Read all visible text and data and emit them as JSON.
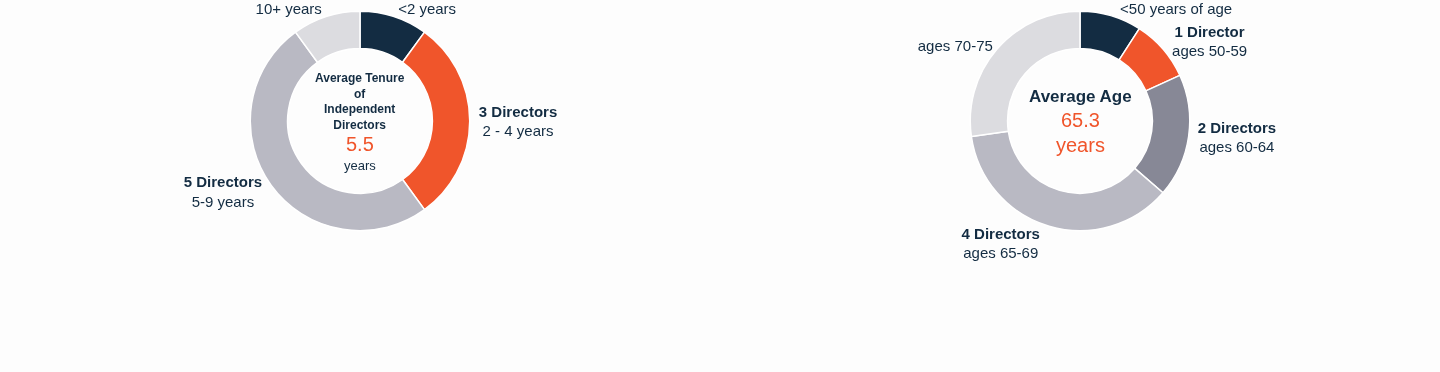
{
  "chart_data": [
    {
      "type": "donut",
      "title": "Average Tenure\nof\nIndependent\nDirectors",
      "annotations": [
        "5.5",
        "years"
      ],
      "categories": [
        "<2 years",
        "3 Directors\n2 - 4 years",
        "5 Directors\n5-9 years",
        "10+ years"
      ],
      "values": [
        1,
        3,
        5,
        1
      ],
      "colors": [
        "#132c42",
        "#f0552b",
        "#b9b9c3",
        "#dcdce0"
      ],
      "legend": false
    },
    {
      "type": "donut",
      "title": "Average Age",
      "annotations": [
        "65.3",
        "years"
      ],
      "categories": [
        "1 Director\n<50 years of age",
        "1 Director\nages 50-59",
        "2 Directors\nages 60-64",
        "4 Directors\nages 65-69",
        "ages 70-75"
      ],
      "values": [
        1,
        1,
        2,
        4,
        3
      ],
      "colors": [
        "#132c42",
        "#f0552b",
        "#878896",
        "#b9b9c3",
        "#dcdce0"
      ],
      "legend": false
    }
  ]
}
